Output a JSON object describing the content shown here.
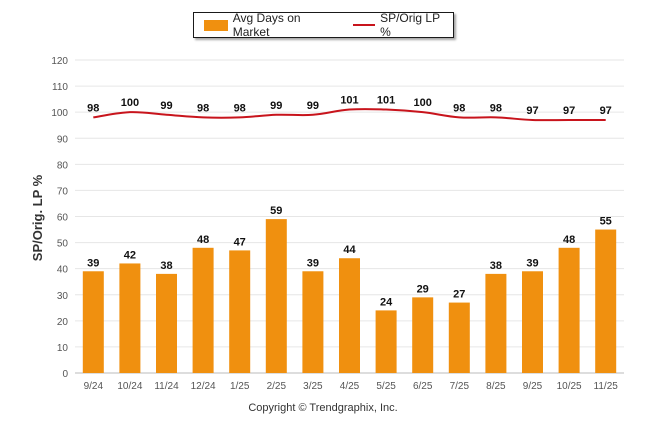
{
  "legend": {
    "bar_label": "Avg Days on Market",
    "line_label": "SP/Orig LP %"
  },
  "copyright": "Copyright © Trendgraphix, Inc.",
  "colors": {
    "bar": "#f0900f",
    "line": "#c8141c",
    "grid": "#e6e6e6"
  },
  "chart_data": {
    "type": "bar",
    "title": "",
    "xlabel": "",
    "ylabel": "SP/Orig. LP %",
    "ylim": [
      0,
      120
    ],
    "yticks": [
      0,
      10,
      20,
      30,
      40,
      50,
      60,
      70,
      80,
      90,
      100,
      110,
      120
    ],
    "grid": true,
    "legend_position": "top-center",
    "categories": [
      "9/24",
      "10/24",
      "11/24",
      "12/24",
      "1/25",
      "2/25",
      "3/25",
      "4/25",
      "5/25",
      "6/25",
      "7/25",
      "8/25",
      "9/25",
      "10/25",
      "11/25"
    ],
    "series": [
      {
        "name": "Avg Days on Market",
        "type": "bar",
        "values": [
          39,
          42,
          38,
          48,
          47,
          59,
          39,
          44,
          24,
          29,
          27,
          38,
          39,
          48,
          55
        ]
      },
      {
        "name": "SP/Orig LP %",
        "type": "line",
        "values": [
          98,
          100,
          99,
          98,
          98,
          99,
          99,
          101,
          101,
          100,
          98,
          98,
          97,
          97,
          97
        ]
      }
    ]
  }
}
